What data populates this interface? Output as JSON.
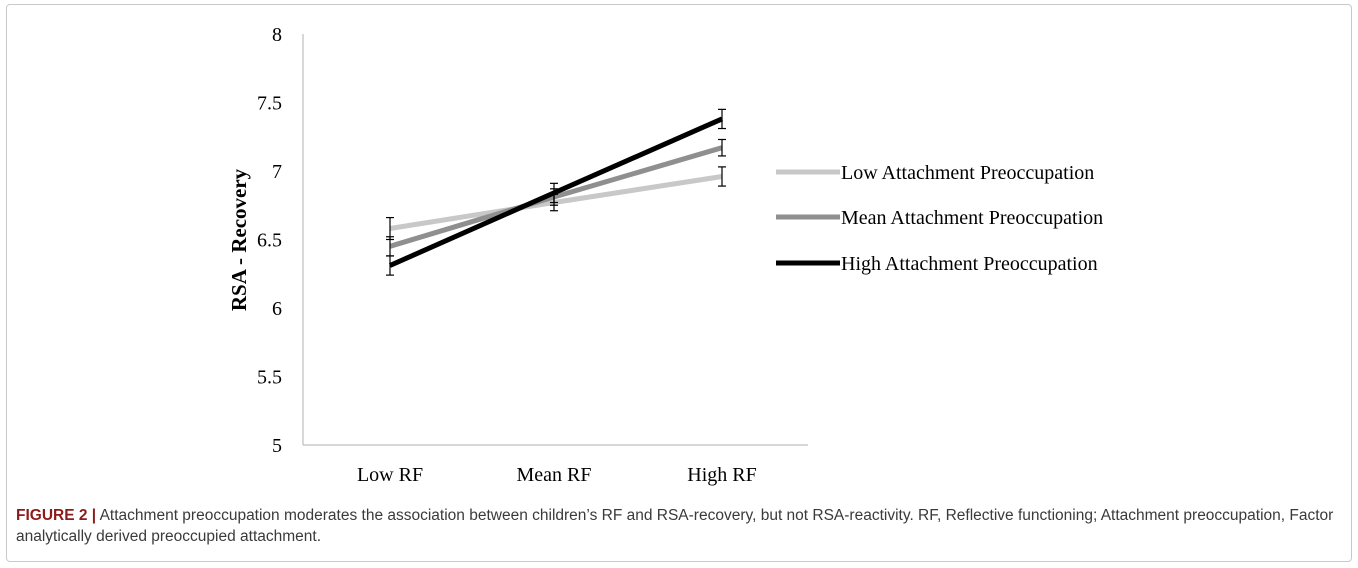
{
  "chart_data": {
    "type": "line",
    "title": "",
    "xlabel": "",
    "ylabel": "RSA - Recovery",
    "categories": [
      "Low RF",
      "Mean RF",
      "High RF"
    ],
    "ylim": [
      5,
      8
    ],
    "yticks": [
      "5",
      "5.5",
      "6",
      "6.5",
      "7",
      "7.5",
      "8"
    ],
    "grid": false,
    "legend_position": "right",
    "series": [
      {
        "name": "Low Attachment Preoccupation",
        "color": "#c8c8c8",
        "values": [
          6.58,
          6.77,
          6.96
        ],
        "error": [
          0.08,
          0.06,
          0.07
        ]
      },
      {
        "name": "Mean Attachment Preoccupation",
        "color": "#8f8f8f",
        "values": [
          6.45,
          6.81,
          7.17
        ],
        "error": [
          0.07,
          0.06,
          0.06
        ]
      },
      {
        "name": "High Attachment Preoccupation",
        "color": "#000000",
        "values": [
          6.31,
          6.84,
          7.38
        ],
        "error": [
          0.07,
          0.07,
          0.07
        ]
      }
    ]
  },
  "caption": {
    "label": "FIGURE 2 |",
    "text": "Attachment preoccupation moderates the association between children’s RF and RSA-recovery, but not RSA-reactivity. RF, Reflective functioning; Attachment preoccupation, Factor analytically derived preoccupied attachment."
  }
}
